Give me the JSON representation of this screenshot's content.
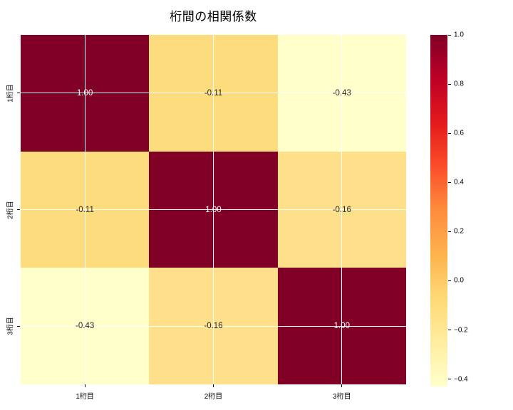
{
  "figure": {
    "background": "#ffffff"
  },
  "chart_data": {
    "type": "heatmap",
    "title": "桁間の相関係数",
    "x_categories": [
      "1桁目",
      "2桁目",
      "3桁目"
    ],
    "y_categories": [
      "1桁目",
      "2桁目",
      "3桁目"
    ],
    "matrix": [
      [
        1.0,
        -0.11,
        -0.43
      ],
      [
        -0.11,
        1.0,
        -0.16
      ],
      [
        -0.43,
        -0.16,
        1.0
      ]
    ],
    "cell_labels": [
      [
        "1.00",
        "-0.11",
        "-0.43"
      ],
      [
        "-0.11",
        "1.00",
        "-0.16"
      ],
      [
        "-0.43",
        "-0.16",
        "1.00"
      ]
    ],
    "cell_colors": [
      [
        "#800026",
        "#fddc7d",
        "#ffffcc"
      ],
      [
        "#fddc7d",
        "#800026",
        "#fde089"
      ],
      [
        "#ffffcc",
        "#fde089",
        "#800026"
      ]
    ],
    "cell_text_colors": [
      [
        "#ffffff",
        "#262626",
        "#262626"
      ],
      [
        "#262626",
        "#ffffff",
        "#262626"
      ],
      [
        "#262626",
        "#262626",
        "#ffffff"
      ]
    ],
    "grid": true,
    "grid_color": "#ffffff",
    "colormap": "YlOrRd",
    "colormap_stops": [
      "#ffffcc",
      "#ffeda0",
      "#fed976",
      "#feb24c",
      "#fd8d3c",
      "#fc4e2a",
      "#e31a1c",
      "#bd0026",
      "#800026"
    ],
    "colorbar": {
      "vmin": -0.43,
      "vmax": 1.0,
      "tick_values": [
        1.0,
        0.8,
        0.6,
        0.4,
        0.2,
        0.0,
        -0.2,
        -0.4
      ],
      "tick_labels": [
        "1.0",
        "0.8",
        "0.6",
        "0.4",
        "0.2",
        "0.0",
        "−0.2",
        "−0.4"
      ],
      "position": "right"
    },
    "legend_position": "right",
    "xlabel": "",
    "ylabel": ""
  }
}
